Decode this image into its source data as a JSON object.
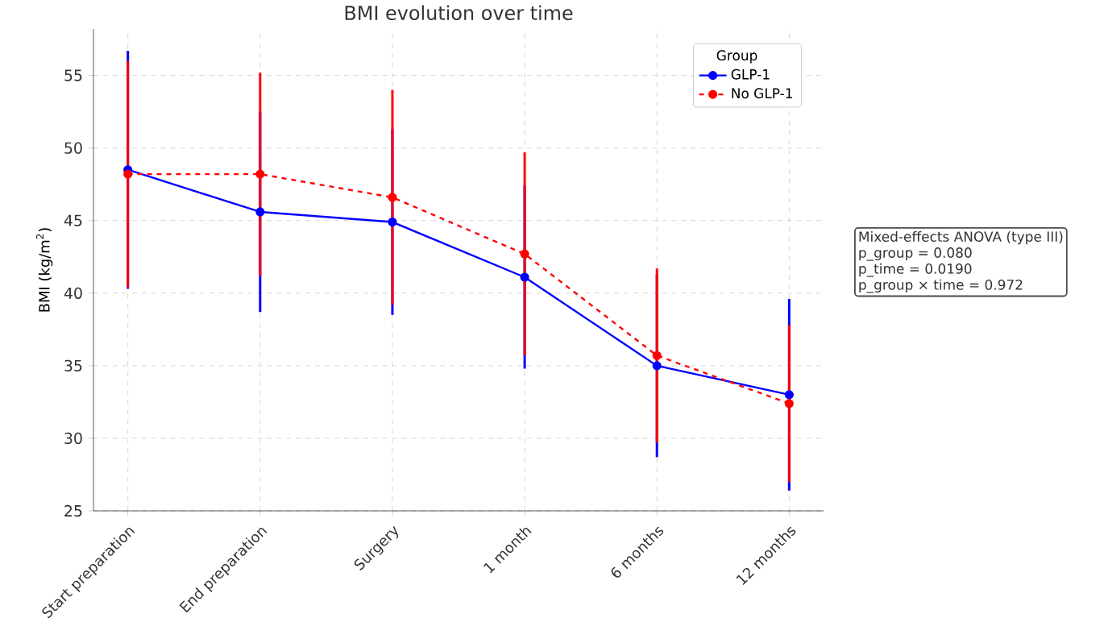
{
  "chart_data": {
    "type": "line",
    "title": "BMI evolution over time",
    "ylabel": "BMI (kg/m$^{2}$)",
    "legend_title": "Group",
    "categories": [
      "Start preparation",
      "End preparation",
      "Surgery",
      "1 month",
      "6 months",
      "12 months"
    ],
    "series": [
      {
        "name": "GLP-1",
        "color": "#0000ff",
        "line_style": "solid",
        "values": [
          48.5,
          45.6,
          44.9,
          41.1,
          35.0,
          33.0
        ],
        "errors": [
          8.2,
          6.9,
          6.4,
          6.3,
          6.3,
          6.6
        ]
      },
      {
        "name": "No GLP-1",
        "color": "#ff0000",
        "line_style": "dashed",
        "values": [
          48.2,
          48.2,
          46.6,
          42.7,
          35.7,
          32.4
        ],
        "errors": [
          7.8,
          7.0,
          7.4,
          7.0,
          6.0,
          5.4
        ]
      }
    ],
    "ylim": [
      25,
      58.2
    ],
    "yticks": [
      25,
      30,
      35,
      40,
      45,
      50,
      55
    ],
    "grid": true,
    "legend": "top right",
    "marker": "circle",
    "annotations": [
      "Mixed-effects ANOVA (type III)",
      "p_group = 0.080",
      "p_time = 0.0190",
      "p_group × time = 0.972"
    ]
  }
}
